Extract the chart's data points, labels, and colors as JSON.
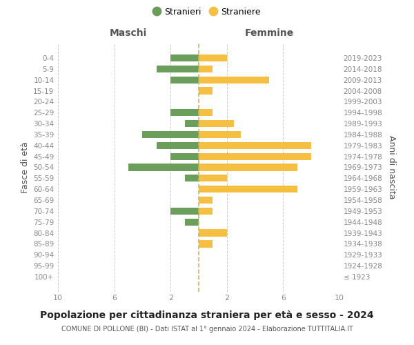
{
  "age_groups": [
    "100+",
    "95-99",
    "90-94",
    "85-89",
    "80-84",
    "75-79",
    "70-74",
    "65-69",
    "60-64",
    "55-59",
    "50-54",
    "45-49",
    "40-44",
    "35-39",
    "30-34",
    "25-29",
    "20-24",
    "15-19",
    "10-14",
    "5-9",
    "0-4"
  ],
  "birth_years": [
    "≤ 1923",
    "1924-1928",
    "1929-1933",
    "1934-1938",
    "1939-1943",
    "1944-1948",
    "1949-1953",
    "1954-1958",
    "1959-1963",
    "1964-1968",
    "1969-1973",
    "1974-1978",
    "1979-1983",
    "1984-1988",
    "1989-1993",
    "1994-1998",
    "1999-2003",
    "2004-2008",
    "2009-2013",
    "2014-2018",
    "2019-2023"
  ],
  "maschi": [
    0,
    0,
    0,
    0,
    0,
    1,
    2,
    0,
    0,
    1,
    5,
    2,
    3,
    4,
    1,
    2,
    0,
    0,
    2,
    3,
    2
  ],
  "femmine": [
    0,
    0,
    0,
    1,
    2,
    0,
    1,
    1,
    7,
    2,
    7,
    8,
    8,
    3,
    2.5,
    1,
    0,
    1,
    5,
    1,
    2
  ],
  "maschi_color": "#6a9e5a",
  "femmine_color": "#f5bf42",
  "dashed_line_color": "#c8b560",
  "background_color": "#ffffff",
  "grid_color": "#cccccc",
  "title": "Popolazione per cittadinanza straniera per età e sesso - 2024",
  "subtitle": "COMUNE DI POLLONE (BI) - Dati ISTAT al 1° gennaio 2024 - Elaborazione TUTTITALIA.IT",
  "ylabel_left": "Fasce di età",
  "ylabel_right": "Anni di nascita",
  "xlabel_maschi": "Maschi",
  "xlabel_femmine": "Femmine",
  "legend_stranieri": "Stranieri",
  "legend_straniere": "Straniere",
  "xlim": 10,
  "figsize": [
    6.0,
    5.0
  ],
  "dpi": 100
}
